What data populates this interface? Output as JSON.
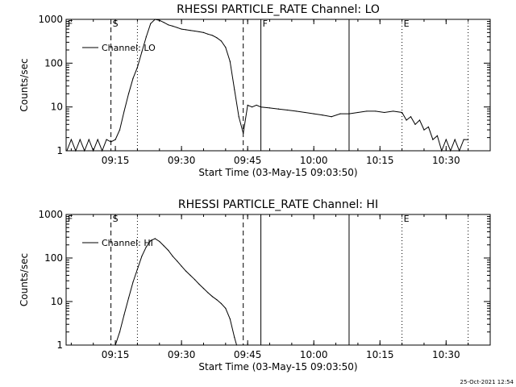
{
  "window": {
    "timestamp": "25-Oct-2021 12:54"
  },
  "chart_data": [
    {
      "type": "line",
      "title": "RHESSI PARTICLE_RATE Channel: LO",
      "xlabel": "Start Time (03-May-15 09:03:50)",
      "ylabel": "Counts/sec",
      "yscale": "log",
      "xlim": [
        "09:03:50",
        "10:40:00"
      ],
      "ylim": [
        1,
        1000
      ],
      "x_ticks": [
        "09:15",
        "09:30",
        "09:45",
        "10:00",
        "10:15",
        "10:30"
      ],
      "y_ticks": [
        "1",
        "10",
        "100",
        "1000"
      ],
      "legend_entries": [
        "Channel: LO"
      ],
      "legend_position": "upper-left",
      "flags": [
        {
          "label": "F",
          "time": "09:03:50",
          "style": "none"
        },
        {
          "label": "S",
          "time": "09:14",
          "style": "dashed"
        },
        {
          "label": "",
          "time": "09:20",
          "style": "dotted"
        },
        {
          "label": "",
          "time": "09:44",
          "style": "dashed"
        },
        {
          "label": "F",
          "time": "09:48",
          "style": "solid"
        },
        {
          "label": "",
          "time": "10:08",
          "style": "solid"
        },
        {
          "label": "E",
          "time": "10:20",
          "style": "dotted"
        },
        {
          "label": "",
          "time": "10:35",
          "style": "dotted"
        }
      ],
      "series": [
        {
          "name": "Channel: LO",
          "points": [
            [
              "09:04",
              1
            ],
            [
              "09:05",
              1.8
            ],
            [
              "09:06",
              1
            ],
            [
              "09:07",
              1.8
            ],
            [
              "09:08",
              1
            ],
            [
              "09:09",
              1.8
            ],
            [
              "09:10",
              1
            ],
            [
              "09:11",
              1.8
            ],
            [
              "09:12",
              1
            ],
            [
              "09:13",
              1.8
            ],
            [
              "09:14",
              1.6
            ],
            [
              "09:15",
              1.8
            ],
            [
              "09:16",
              3
            ],
            [
              "09:17",
              8
            ],
            [
              "09:18",
              20
            ],
            [
              "09:19",
              45
            ],
            [
              "09:20",
              80
            ],
            [
              "09:21",
              180
            ],
            [
              "09:22",
              400
            ],
            [
              "09:23",
              800
            ],
            [
              "09:24",
              1000
            ],
            [
              "09:25",
              950
            ],
            [
              "09:26",
              850
            ],
            [
              "09:27",
              750
            ],
            [
              "09:28",
              700
            ],
            [
              "09:29",
              650
            ],
            [
              "09:30",
              600
            ],
            [
              "09:31",
              580
            ],
            [
              "09:32",
              560
            ],
            [
              "09:33",
              540
            ],
            [
              "09:34",
              520
            ],
            [
              "09:35",
              500
            ],
            [
              "09:36",
              460
            ],
            [
              "09:37",
              430
            ],
            [
              "09:38",
              380
            ],
            [
              "09:39",
              320
            ],
            [
              "09:40",
              230
            ],
            [
              "09:41",
              110
            ],
            [
              "09:42",
              25
            ],
            [
              "09:43",
              6
            ],
            [
              "09:44",
              2.5
            ],
            [
              "09:45",
              11
            ],
            [
              "09:46",
              10
            ],
            [
              "09:47",
              11
            ],
            [
              "09:48",
              10
            ],
            [
              "09:50",
              9.5
            ],
            [
              "09:52",
              9
            ],
            [
              "09:54",
              8.5
            ],
            [
              "09:56",
              8
            ],
            [
              "09:58",
              7.5
            ],
            [
              "10:00",
              7
            ],
            [
              "10:02",
              6.5
            ],
            [
              "10:04",
              6
            ],
            [
              "10:06",
              7
            ],
            [
              "10:08",
              7
            ],
            [
              "10:10",
              7.5
            ],
            [
              "10:12",
              8
            ],
            [
              "10:14",
              8
            ],
            [
              "10:16",
              7.5
            ],
            [
              "10:18",
              8
            ],
            [
              "10:20",
              7.5
            ],
            [
              "10:21",
              5
            ],
            [
              "10:22",
              6
            ],
            [
              "10:23",
              4
            ],
            [
              "10:24",
              5
            ],
            [
              "10:25",
              3
            ],
            [
              "10:26",
              3.5
            ],
            [
              "10:27",
              1.8
            ],
            [
              "10:28",
              2.2
            ],
            [
              "10:29",
              1
            ],
            [
              "10:30",
              1.8
            ],
            [
              "10:31",
              1
            ],
            [
              "10:32",
              1.8
            ],
            [
              "10:33",
              1
            ],
            [
              "10:34",
              1.8
            ],
            [
              "10:35",
              1.8
            ]
          ]
        }
      ]
    },
    {
      "type": "line",
      "title": "RHESSI PARTICLE_RATE Channel: HI",
      "xlabel": "Start Time (03-May-15 09:03:50)",
      "ylabel": "Counts/sec",
      "yscale": "log",
      "xlim": [
        "09:03:50",
        "10:40:00"
      ],
      "ylim": [
        1,
        1000
      ],
      "x_ticks": [
        "09:15",
        "09:30",
        "09:45",
        "10:00",
        "10:15",
        "10:30"
      ],
      "y_ticks": [
        "1",
        "10",
        "100",
        "1000"
      ],
      "legend_entries": [
        "Channel: HI"
      ],
      "legend_position": "upper-left",
      "flags": [
        {
          "label": "F",
          "time": "09:03:50",
          "style": "none"
        },
        {
          "label": "S",
          "time": "09:14",
          "style": "dashed"
        },
        {
          "label": "",
          "time": "09:20",
          "style": "dotted"
        },
        {
          "label": "",
          "time": "09:44",
          "style": "dashed"
        },
        {
          "label": "",
          "time": "09:48",
          "style": "solid"
        },
        {
          "label": "",
          "time": "10:08",
          "style": "solid"
        },
        {
          "label": "E",
          "time": "10:20",
          "style": "dotted"
        },
        {
          "label": "",
          "time": "10:35",
          "style": "dotted"
        }
      ],
      "series": [
        {
          "name": "Channel: HI",
          "points": [
            [
              "09:15",
              1
            ],
            [
              "09:16",
              2
            ],
            [
              "09:17",
              5
            ],
            [
              "09:18",
              12
            ],
            [
              "09:19",
              28
            ],
            [
              "09:20",
              55
            ],
            [
              "09:21",
              110
            ],
            [
              "09:22",
              180
            ],
            [
              "09:23",
              250
            ],
            [
              "09:24",
              280
            ],
            [
              "09:25",
              240
            ],
            [
              "09:26",
              190
            ],
            [
              "09:27",
              150
            ],
            [
              "09:28",
              110
            ],
            [
              "09:29",
              85
            ],
            [
              "09:30",
              65
            ],
            [
              "09:31",
              50
            ],
            [
              "09:32",
              40
            ],
            [
              "09:33",
              32
            ],
            [
              "09:34",
              25
            ],
            [
              "09:35",
              20
            ],
            [
              "09:36",
              16
            ],
            [
              "09:37",
              13
            ],
            [
              "09:38",
              11
            ],
            [
              "09:39",
              9
            ],
            [
              "09:40",
              7
            ],
            [
              "09:41",
              4
            ],
            [
              "09:42",
              1.5
            ],
            [
              "09:42:30",
              1
            ]
          ]
        }
      ]
    }
  ]
}
